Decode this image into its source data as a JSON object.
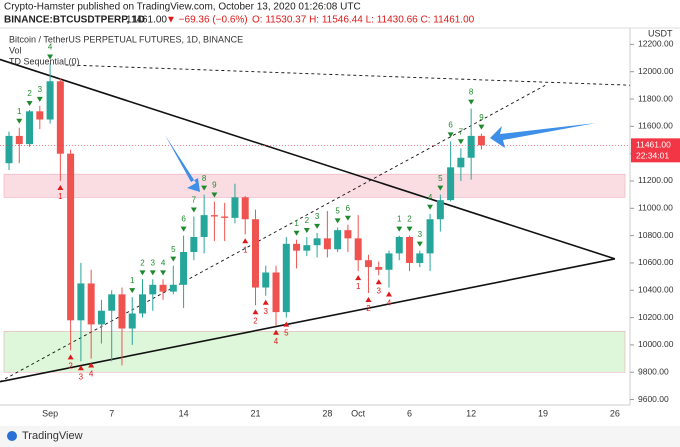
{
  "header": {
    "publisher": "Crypto-Hamster published on TradingView.com, October 13, 2020 01:26:08 UTC",
    "symbol": "BINANCE:BTCUSDTPERP, 1D",
    "price": "11461.00",
    "change": "▼ −69.36 (−0.6%)",
    "ohlc": "O: 11530.37 H: 11546.44 L: 11430.66 C: 11461.00"
  },
  "legend": {
    "title": "Bitcoin / TetherUS PERPETUAL FUTURES, 1D, BINANCE",
    "volume": "Vol",
    "indicator": "TD Sequential (0)"
  },
  "footer": "TradingView",
  "chart_data": {
    "type": "candlestick",
    "categories": [
      null,
      null,
      null,
      null,
      "Sep",
      null,
      null,
      null,
      null,
      null,
      "7",
      null,
      null,
      null,
      null,
      null,
      null,
      "14",
      null,
      null,
      null,
      null,
      null,
      null,
      "21",
      null,
      null,
      null,
      null,
      null,
      null,
      "28",
      null,
      null,
      "Oct",
      null,
      null,
      null,
      null,
      "6",
      null,
      null,
      null,
      null,
      null,
      "12",
      null,
      null,
      null,
      null,
      null,
      null,
      "19",
      null,
      null,
      null,
      null,
      null,
      null,
      "26",
      null,
      null
    ],
    "open": [
      11330,
      11530,
      11470,
      11710,
      11650,
      11930,
      11400,
      10180,
      10450,
      10150,
      10250,
      10370,
      10120,
      10230,
      10370,
      10440,
      10390,
      10440,
      10680,
      10790,
      10950,
      10940,
      10930,
      11080,
      10920,
      10420,
      10530,
      10240,
      10740,
      10690,
      10730,
      10780,
      10700,
      10840,
      10780,
      10620,
      10570,
      10550,
      10670,
      10790,
      10600,
      10670,
      10920,
      11060,
      11300,
      11370,
      11530.37,
      null,
      null,
      null,
      null,
      null,
      null,
      null,
      null,
      null,
      null,
      null,
      null,
      null,
      null,
      null
    ],
    "high": [
      11560,
      11590,
      11720,
      11750,
      12060,
      11950,
      11430,
      10600,
      10550,
      10330,
      10400,
      10420,
      10350,
      10480,
      10480,
      10480,
      10580,
      10800,
      10940,
      11100,
      11050,
      11040,
      11180,
      11090,
      10990,
      10580,
      10580,
      10790,
      10770,
      10790,
      10820,
      10980,
      10860,
      10880,
      10950,
      10660,
      10610,
      10690,
      10800,
      10800,
      10690,
      10960,
      11100,
      11490,
      11440,
      11730,
      11546.44,
      null,
      null,
      null,
      null,
      null,
      null,
      null,
      null,
      null,
      null,
      null,
      null,
      null,
      null,
      null
    ],
    "low": [
      11280,
      11330,
      11450,
      11580,
      11620,
      11200,
      9960,
      9880,
      9900,
      10010,
      9880,
      9850,
      10000,
      10200,
      10250,
      10330,
      10370,
      10270,
      10620,
      10670,
      10760,
      10760,
      10890,
      10810,
      10290,
      10360,
      10140,
      10200,
      10560,
      10650,
      10640,
      10640,
      10680,
      10680,
      10540,
      10380,
      10510,
      10420,
      10620,
      10540,
      10570,
      10540,
      10830,
      11050,
      11200,
      11210,
      11430.66,
      null,
      null,
      null,
      null,
      null,
      null,
      null,
      null,
      null,
      null,
      null,
      null,
      null,
      null,
      null
    ],
    "close": [
      11530,
      11470,
      11710,
      11650,
      11930,
      11400,
      10180,
      10450,
      10150,
      10250,
      10370,
      10120,
      10230,
      10370,
      10440,
      10390,
      10440,
      10680,
      10790,
      10950,
      10940,
      10930,
      11080,
      10920,
      10420,
      10530,
      10240,
      10740,
      10690,
      10730,
      10780,
      10700,
      10840,
      10780,
      10620,
      10570,
      10550,
      10670,
      10790,
      10600,
      10670,
      10920,
      11060,
      11300,
      11370,
      11530,
      11461,
      null,
      null,
      null,
      null,
      null,
      null,
      null,
      null,
      null,
      null,
      null,
      null,
      null,
      null,
      null
    ],
    "up_color": "#26a69a",
    "down_color": "#ef5350",
    "ylim": [
      9560,
      12320
    ],
    "yticks": [
      {
        "value": 9600,
        "label": "9600.00"
      },
      {
        "value": 9800,
        "label": "9800.00"
      },
      {
        "value": 10000,
        "label": "10000.00"
      },
      {
        "value": 10200,
        "label": "10200.00"
      },
      {
        "value": 10400,
        "label": "10400.00"
      },
      {
        "value": 10600,
        "label": "10600.00"
      },
      {
        "value": 10800,
        "label": "10800.00"
      },
      {
        "value": 11000,
        "label": "11000.00"
      },
      {
        "value": 11200,
        "label": "11200.00"
      },
      {
        "value": 11400,
        "label": "11400.00"
      },
      {
        "value": 11600,
        "label": "11600.00"
      },
      {
        "value": 11800,
        "label": "11800.00"
      },
      {
        "value": 12000,
        "label": "12000.00"
      },
      {
        "value": 12200,
        "label": "12200.00"
      }
    ],
    "currency": "USDT",
    "last_price": {
      "value": 11461,
      "label": "11461.00",
      "countdown": "22:34:01",
      "color": "#f23645"
    },
    "zones": [
      {
        "low": 11080,
        "high": 11250,
        "color": "#f7c6d0"
      },
      {
        "low": 9800,
        "high": 10100,
        "color": "#c8f0c0"
      }
    ],
    "trend_lines": [
      {
        "from": [
          -0.9,
          12090
        ],
        "to": [
          59,
          10630
        ],
        "style": "solid"
      },
      {
        "from": [
          -0.9,
          9730
        ],
        "to": [
          59,
          10630
        ],
        "style": "solid"
      },
      {
        "from": [
          -0.9,
          9730
        ],
        "to": [
          52.2,
          11900
        ],
        "style": "dashed"
      },
      {
        "from": [
          5.5,
          12050
        ],
        "to": [
          60.9,
          11900
        ],
        "style": "dashed"
      }
    ],
    "td_sequential": [
      {
        "candle": 1,
        "label": "1",
        "color": "#1e8a2e"
      },
      {
        "candle": 2,
        "label": "2",
        "color": "#1e8a2e"
      },
      {
        "candle": 3,
        "label": "3",
        "color": "#1e8a2e"
      },
      {
        "candle": 4,
        "label": "4",
        "color": "#1e8a2e"
      },
      {
        "candle": 5,
        "label": "1",
        "color": "#e01818"
      },
      {
        "candle": 6,
        "label": "2",
        "color": "#e01818"
      },
      {
        "candle": 7,
        "label": "3",
        "color": "#e01818"
      },
      {
        "candle": 8,
        "label": "4",
        "color": "#e01818"
      },
      {
        "candle": 12,
        "label": "1",
        "color": "#1e8a2e"
      },
      {
        "candle": 13,
        "label": "2",
        "color": "#1e8a2e"
      },
      {
        "candle": 14,
        "label": "3",
        "color": "#1e8a2e"
      },
      {
        "candle": 15,
        "label": "4",
        "color": "#1e8a2e"
      },
      {
        "candle": 16,
        "label": "5",
        "color": "#1e8a2e"
      },
      {
        "candle": 17,
        "label": "6",
        "color": "#1e8a2e"
      },
      {
        "candle": 18,
        "label": "7",
        "color": "#1e8a2e"
      },
      {
        "candle": 19,
        "label": "8",
        "color": "#1e8a2e"
      },
      {
        "candle": 20,
        "label": "9",
        "color": "#1e8a2e"
      },
      {
        "candle": 23,
        "label": "1",
        "color": "#e01818"
      },
      {
        "candle": 24,
        "label": "2",
        "color": "#e01818"
      },
      {
        "candle": 25,
        "label": "3",
        "color": "#e01818"
      },
      {
        "candle": 26,
        "label": "4",
        "color": "#e01818"
      },
      {
        "candle": 27,
        "label": "5",
        "color": "#e01818"
      },
      {
        "candle": 28,
        "label": "1",
        "color": "#1e8a2e"
      },
      {
        "candle": 29,
        "label": "2",
        "color": "#1e8a2e"
      },
      {
        "candle": 30,
        "label": "3",
        "color": "#1e8a2e"
      },
      {
        "candle": 32,
        "label": "5",
        "color": "#1e8a2e"
      },
      {
        "candle": 33,
        "label": "6",
        "color": "#1e8a2e"
      },
      {
        "candle": 34,
        "label": "1",
        "color": "#e01818"
      },
      {
        "candle": 35,
        "label": "2",
        "color": "#e01818"
      },
      {
        "candle": 36,
        "label": "3",
        "color": "#e01818"
      },
      {
        "candle": 37,
        "label": "4",
        "color": "#e01818"
      },
      {
        "candle": 38,
        "label": "1",
        "color": "#1e8a2e"
      },
      {
        "candle": 39,
        "label": "2",
        "color": "#1e8a2e"
      },
      {
        "candle": 40,
        "label": "3",
        "color": "#1e8a2e"
      },
      {
        "candle": 41,
        "label": "4",
        "color": "#1e8a2e"
      },
      {
        "candle": 42,
        "label": "5",
        "color": "#1e8a2e"
      },
      {
        "candle": 43,
        "label": "6",
        "color": "#1e8a2e"
      },
      {
        "candle": 44,
        "label": "7",
        "color": "#1e8a2e"
      },
      {
        "candle": 45,
        "label": "8",
        "color": "#1e8a2e"
      },
      {
        "candle": 46,
        "label": "9",
        "color": "#1e8a2e"
      }
    ]
  }
}
